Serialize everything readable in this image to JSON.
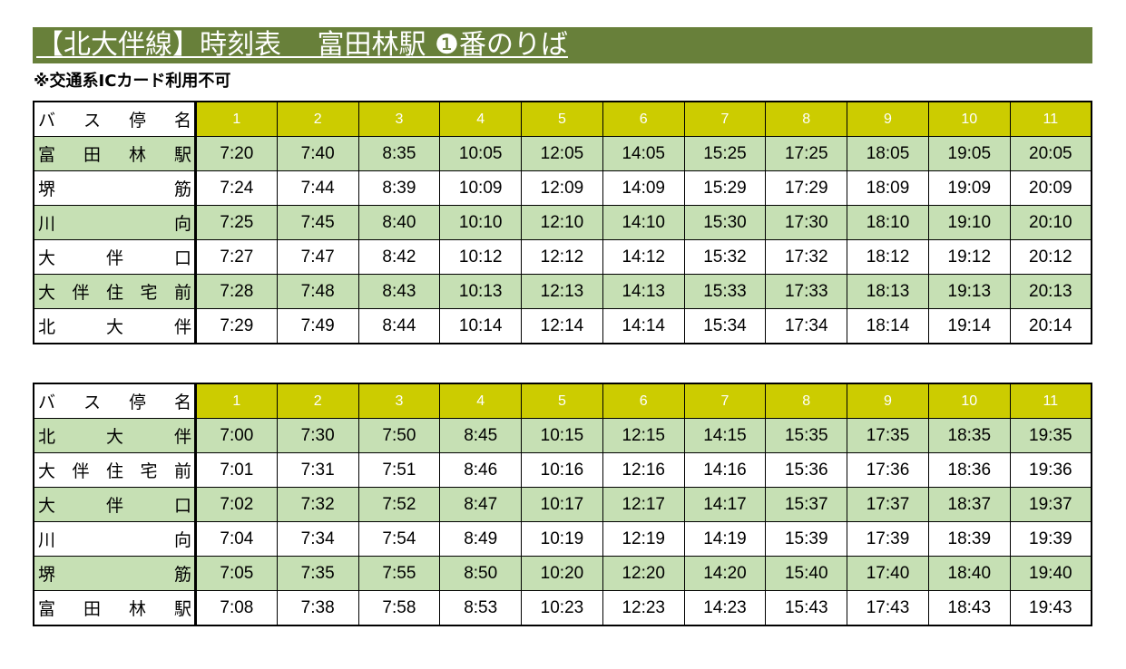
{
  "header": {
    "title": "【北大伴線】時刻表　 富田林駅 ❶番のりば",
    "note": "※交通系ICカード利用不可"
  },
  "colors": {
    "title_bg": "#68803a",
    "header_bg": "#cccc00",
    "row_green": "#c6e0b4"
  },
  "tables": [
    {
      "header_label": [
        "バ",
        "ス",
        "停",
        "名"
      ],
      "trip_numbers": [
        "1",
        "2",
        "3",
        "4",
        "5",
        "6",
        "7",
        "8",
        "9",
        "10",
        "11"
      ],
      "rows": [
        {
          "stop": [
            "富",
            "田",
            "林",
            "駅"
          ],
          "times": [
            "7:20",
            "7:40",
            "8:35",
            "10:05",
            "12:05",
            "14:05",
            "15:25",
            "17:25",
            "18:05",
            "19:05",
            "20:05"
          ]
        },
        {
          "stop": [
            "堺",
            "筋"
          ],
          "times": [
            "7:24",
            "7:44",
            "8:39",
            "10:09",
            "12:09",
            "14:09",
            "15:29",
            "17:29",
            "18:09",
            "19:09",
            "20:09"
          ]
        },
        {
          "stop": [
            "川",
            "向"
          ],
          "times": [
            "7:25",
            "7:45",
            "8:40",
            "10:10",
            "12:10",
            "14:10",
            "15:30",
            "17:30",
            "18:10",
            "19:10",
            "20:10"
          ]
        },
        {
          "stop": [
            "大",
            "伴",
            "口"
          ],
          "times": [
            "7:27",
            "7:47",
            "8:42",
            "10:12",
            "12:12",
            "14:12",
            "15:32",
            "17:32",
            "18:12",
            "19:12",
            "20:12"
          ]
        },
        {
          "stop": [
            "大",
            "伴",
            "住",
            "宅",
            "前"
          ],
          "times": [
            "7:28",
            "7:48",
            "8:43",
            "10:13",
            "12:13",
            "14:13",
            "15:33",
            "17:33",
            "18:13",
            "19:13",
            "20:13"
          ]
        },
        {
          "stop": [
            "北",
            "大",
            "伴"
          ],
          "times": [
            "7:29",
            "7:49",
            "8:44",
            "10:14",
            "12:14",
            "14:14",
            "15:34",
            "17:34",
            "18:14",
            "19:14",
            "20:14"
          ]
        }
      ]
    },
    {
      "header_label": [
        "バ",
        "ス",
        "停",
        "名"
      ],
      "trip_numbers": [
        "1",
        "2",
        "3",
        "4",
        "5",
        "6",
        "7",
        "8",
        "9",
        "10",
        "11"
      ],
      "rows": [
        {
          "stop": [
            "北",
            "大",
            "伴"
          ],
          "times": [
            "7:00",
            "7:30",
            "7:50",
            "8:45",
            "10:15",
            "12:15",
            "14:15",
            "15:35",
            "17:35",
            "18:35",
            "19:35"
          ]
        },
        {
          "stop": [
            "大",
            "伴",
            "住",
            "宅",
            "前"
          ],
          "times": [
            "7:01",
            "7:31",
            "7:51",
            "8:46",
            "10:16",
            "12:16",
            "14:16",
            "15:36",
            "17:36",
            "18:36",
            "19:36"
          ]
        },
        {
          "stop": [
            "大",
            "伴",
            "口"
          ],
          "times": [
            "7:02",
            "7:32",
            "7:52",
            "8:47",
            "10:17",
            "12:17",
            "14:17",
            "15:37",
            "17:37",
            "18:37",
            "19:37"
          ]
        },
        {
          "stop": [
            "川",
            "向"
          ],
          "times": [
            "7:04",
            "7:34",
            "7:54",
            "8:49",
            "10:19",
            "12:19",
            "14:19",
            "15:39",
            "17:39",
            "18:39",
            "19:39"
          ]
        },
        {
          "stop": [
            "堺",
            "筋"
          ],
          "times": [
            "7:05",
            "7:35",
            "7:55",
            "8:50",
            "10:20",
            "12:20",
            "14:20",
            "15:40",
            "17:40",
            "18:40",
            "19:40"
          ]
        },
        {
          "stop": [
            "富",
            "田",
            "林",
            "駅"
          ],
          "times": [
            "7:08",
            "7:38",
            "7:58",
            "8:53",
            "10:23",
            "12:23",
            "14:23",
            "15:43",
            "17:43",
            "18:43",
            "19:43"
          ]
        }
      ]
    }
  ]
}
